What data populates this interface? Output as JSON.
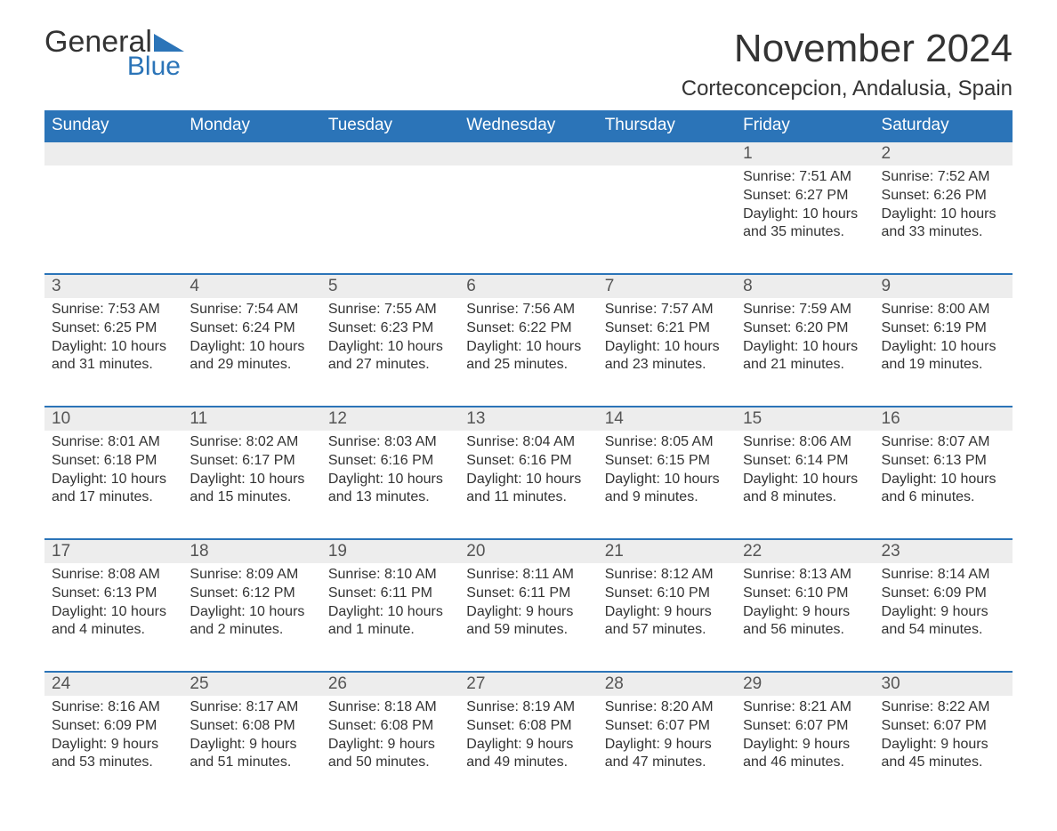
{
  "logo": {
    "text1": "General",
    "text2": "Blue",
    "tri_color": "#2b74b8"
  },
  "title": "November 2024",
  "location": "Corteconcepcion, Andalusia, Spain",
  "colors": {
    "header_bg": "#2b74b8",
    "header_fg": "#ffffff",
    "daynum_bg": "#ededed",
    "row_border": "#2b74b8",
    "text": "#333333"
  },
  "fonts": {
    "title_size": 44,
    "location_size": 24,
    "th_size": 19,
    "daynum_size": 19,
    "info_size": 16
  },
  "weekdays": [
    "Sunday",
    "Monday",
    "Tuesday",
    "Wednesday",
    "Thursday",
    "Friday",
    "Saturday"
  ],
  "weeks": [
    [
      null,
      null,
      null,
      null,
      null,
      {
        "n": "1",
        "sr": "7:51 AM",
        "ss": "6:27 PM",
        "dl": "10 hours and 35 minutes."
      },
      {
        "n": "2",
        "sr": "7:52 AM",
        "ss": "6:26 PM",
        "dl": "10 hours and 33 minutes."
      }
    ],
    [
      {
        "n": "3",
        "sr": "7:53 AM",
        "ss": "6:25 PM",
        "dl": "10 hours and 31 minutes."
      },
      {
        "n": "4",
        "sr": "7:54 AM",
        "ss": "6:24 PM",
        "dl": "10 hours and 29 minutes."
      },
      {
        "n": "5",
        "sr": "7:55 AM",
        "ss": "6:23 PM",
        "dl": "10 hours and 27 minutes."
      },
      {
        "n": "6",
        "sr": "7:56 AM",
        "ss": "6:22 PM",
        "dl": "10 hours and 25 minutes."
      },
      {
        "n": "7",
        "sr": "7:57 AM",
        "ss": "6:21 PM",
        "dl": "10 hours and 23 minutes."
      },
      {
        "n": "8",
        "sr": "7:59 AM",
        "ss": "6:20 PM",
        "dl": "10 hours and 21 minutes."
      },
      {
        "n": "9",
        "sr": "8:00 AM",
        "ss": "6:19 PM",
        "dl": "10 hours and 19 minutes."
      }
    ],
    [
      {
        "n": "10",
        "sr": "8:01 AM",
        "ss": "6:18 PM",
        "dl": "10 hours and 17 minutes."
      },
      {
        "n": "11",
        "sr": "8:02 AM",
        "ss": "6:17 PM",
        "dl": "10 hours and 15 minutes."
      },
      {
        "n": "12",
        "sr": "8:03 AM",
        "ss": "6:16 PM",
        "dl": "10 hours and 13 minutes."
      },
      {
        "n": "13",
        "sr": "8:04 AM",
        "ss": "6:16 PM",
        "dl": "10 hours and 11 minutes."
      },
      {
        "n": "14",
        "sr": "8:05 AM",
        "ss": "6:15 PM",
        "dl": "10 hours and 9 minutes."
      },
      {
        "n": "15",
        "sr": "8:06 AM",
        "ss": "6:14 PM",
        "dl": "10 hours and 8 minutes."
      },
      {
        "n": "16",
        "sr": "8:07 AM",
        "ss": "6:13 PM",
        "dl": "10 hours and 6 minutes."
      }
    ],
    [
      {
        "n": "17",
        "sr": "8:08 AM",
        "ss": "6:13 PM",
        "dl": "10 hours and 4 minutes."
      },
      {
        "n": "18",
        "sr": "8:09 AM",
        "ss": "6:12 PM",
        "dl": "10 hours and 2 minutes."
      },
      {
        "n": "19",
        "sr": "8:10 AM",
        "ss": "6:11 PM",
        "dl": "10 hours and 1 minute."
      },
      {
        "n": "20",
        "sr": "8:11 AM",
        "ss": "6:11 PM",
        "dl": "9 hours and 59 minutes."
      },
      {
        "n": "21",
        "sr": "8:12 AM",
        "ss": "6:10 PM",
        "dl": "9 hours and 57 minutes."
      },
      {
        "n": "22",
        "sr": "8:13 AM",
        "ss": "6:10 PM",
        "dl": "9 hours and 56 minutes."
      },
      {
        "n": "23",
        "sr": "8:14 AM",
        "ss": "6:09 PM",
        "dl": "9 hours and 54 minutes."
      }
    ],
    [
      {
        "n": "24",
        "sr": "8:16 AM",
        "ss": "6:09 PM",
        "dl": "9 hours and 53 minutes."
      },
      {
        "n": "25",
        "sr": "8:17 AM",
        "ss": "6:08 PM",
        "dl": "9 hours and 51 minutes."
      },
      {
        "n": "26",
        "sr": "8:18 AM",
        "ss": "6:08 PM",
        "dl": "9 hours and 50 minutes."
      },
      {
        "n": "27",
        "sr": "8:19 AM",
        "ss": "6:08 PM",
        "dl": "9 hours and 49 minutes."
      },
      {
        "n": "28",
        "sr": "8:20 AM",
        "ss": "6:07 PM",
        "dl": "9 hours and 47 minutes."
      },
      {
        "n": "29",
        "sr": "8:21 AM",
        "ss": "6:07 PM",
        "dl": "9 hours and 46 minutes."
      },
      {
        "n": "30",
        "sr": "8:22 AM",
        "ss": "6:07 PM",
        "dl": "9 hours and 45 minutes."
      }
    ]
  ],
  "labels": {
    "sunrise": "Sunrise:",
    "sunset": "Sunset:",
    "daylight": "Daylight:"
  }
}
